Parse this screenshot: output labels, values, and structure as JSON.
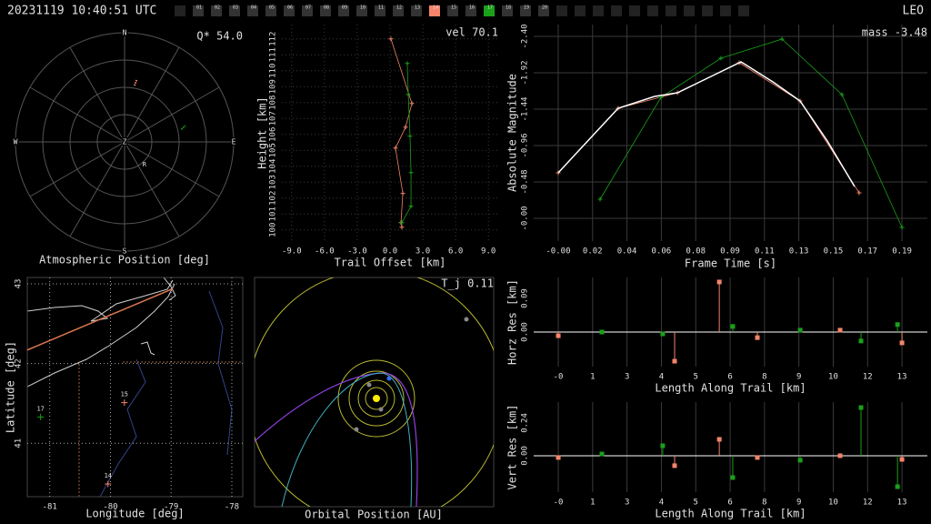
{
  "header": {
    "timestamp": "20231119 10:40:51 UTC",
    "mode": "LEO",
    "stations": [
      {
        "label": "01"
      },
      {
        "label": "02"
      },
      {
        "label": "03"
      },
      {
        "label": "04"
      },
      {
        "label": "05"
      },
      {
        "label": "06"
      },
      {
        "label": "07"
      },
      {
        "label": "08"
      },
      {
        "label": "09"
      },
      {
        "label": "10"
      },
      {
        "label": "11"
      },
      {
        "label": "12"
      },
      {
        "label": "13"
      },
      {
        "label": "14",
        "color": "#f4846a"
      },
      {
        "label": "15"
      },
      {
        "label": "16"
      },
      {
        "label": "17",
        "color": "#1aa01a"
      },
      {
        "label": "18"
      },
      {
        "label": "19"
      },
      {
        "label": "20"
      }
    ]
  },
  "chart_data": [
    {
      "type": "polar",
      "title": "Atmospheric Position [deg]",
      "annotation": "Q* 54.0",
      "direction_labels": [
        "N",
        "E",
        "S",
        "W"
      ],
      "center_label": "Z",
      "rlim": [
        0,
        90
      ],
      "rticks": [
        22.5,
        45,
        67.5,
        90
      ],
      "series": [
        {
          "color": "#f4846a",
          "azimuth": [
            11,
            10
          ],
          "values": [
            52,
            47
          ]
        },
        {
          "color": "#1aa01a",
          "azimuth": [
            77.5,
            75
          ],
          "values": [
            48,
            52
          ]
        }
      ],
      "radiant": {
        "label": "R",
        "azimuth": 139,
        "zenith": 25
      }
    },
    {
      "type": "line",
      "annotation": "vel 70.1",
      "xlabel": "Trail Offset [km]",
      "ylabel": "Height [km]",
      "xlim": [
        -9.9,
        9.9
      ],
      "xticks": [
        {
          "value": -9,
          "label": "-9.0"
        },
        {
          "value": -6,
          "label": "-6.0"
        },
        {
          "value": -3,
          "label": "-3.0"
        },
        {
          "value": 0,
          "label": "0.0"
        },
        {
          "value": 3,
          "label": "3.0"
        },
        {
          "value": 6,
          "label": "6.0"
        },
        {
          "value": 9,
          "label": "9.0"
        }
      ],
      "ylim": [
        99.3,
        112.9
      ],
      "yticks": [
        100,
        101,
        102,
        103,
        104,
        105,
        106,
        107,
        108,
        109,
        110,
        111,
        112
      ],
      "grid": "xy",
      "grid_style": "dotted",
      "series": [
        {
          "color": "#f4846a",
          "marker": "+",
          "x": [
            0.08,
            2.0,
            1.42,
            0.5,
            1.17,
            1.0,
            1.08
          ],
          "values": [
            112.0,
            107.94,
            106.46,
            105.14,
            102.29,
            100.46,
            100.17
          ]
        },
        {
          "color": "#1aa01a",
          "marker": "+",
          "x": [
            1.58,
            1.67,
            1.83,
            1.92,
            1.92,
            1.08
          ],
          "values": [
            110.46,
            108.51,
            105.89,
            103.6,
            101.49,
            100.46
          ]
        }
      ]
    },
    {
      "type": "line",
      "annotation": "mass -3.48",
      "xlabel": "Frame Time [s]",
      "ylabel": "Absolute Magnitude",
      "xlim": [
        -0.0134,
        0.2019
      ],
      "xticks": [
        {
          "value": 0,
          "label": "-0.00"
        },
        {
          "value": 0.0188,
          "label": "0.02"
        },
        {
          "value": 0.0376,
          "label": "0.04"
        },
        {
          "value": 0.0564,
          "label": "0.06"
        },
        {
          "value": 0.0752,
          "label": "0.08"
        },
        {
          "value": 0.094,
          "label": "0.09"
        },
        {
          "value": 0.1128,
          "label": "0.11"
        },
        {
          "value": 0.1316,
          "label": "0.13"
        },
        {
          "value": 0.1504,
          "label": "0.15"
        },
        {
          "value": 0.1692,
          "label": "0.17"
        },
        {
          "value": 0.188,
          "label": "0.19"
        }
      ],
      "ylim": [
        0.3,
        -2.556
      ],
      "yticks": [
        {
          "value": -2.4,
          "label": "-2.40"
        },
        {
          "value": -1.92,
          "label": "-1.92"
        },
        {
          "value": -1.44,
          "label": "-1.44"
        },
        {
          "value": -0.96,
          "label": "-0.96"
        },
        {
          "value": -0.48,
          "label": "-0.48"
        },
        {
          "value": 0,
          "label": "-0.00"
        }
      ],
      "grid": "xy",
      "grid_style": "solid",
      "series": [
        {
          "color": "#f4846a",
          "marker": "+",
          "x": [
            0,
            0.0328,
            0.0652,
            0.099,
            0.1323,
            0.1646
          ],
          "values": [
            -0.6,
            -1.452,
            -1.656,
            -2.052,
            -1.548,
            -0.336
          ]
        },
        {
          "color": "#1aa01a",
          "marker": "+",
          "x": [
            0.0229,
            0.0562,
            0.089,
            0.1224,
            0.1552,
            0.188
          ],
          "values": [
            -0.252,
            -1.596,
            -2.112,
            -2.364,
            -1.632,
            0.12
          ]
        },
        {
          "color": "#ffffff",
          "x": [
            0,
            0.0129,
            0.0328,
            0.0527,
            0.0652,
            0.0826,
            0.1,
            0.1174,
            0.1323,
            0.1472,
            0.1621
          ],
          "values": [
            -0.6,
            -0.936,
            -1.452,
            -1.608,
            -1.656,
            -1.86,
            -2.064,
            -1.8,
            -1.548,
            -1.02,
            -0.42
          ]
        }
      ]
    },
    {
      "type": "map",
      "xlabel": "Longitude [deg]",
      "ylabel": "Latitude [deg]",
      "xlim": [
        -81.37,
        -77.82
      ],
      "xticks": [
        -81,
        -80,
        -79,
        -78
      ],
      "ylim": [
        40.33,
        43.08
      ],
      "yticks": [
        41,
        42,
        43
      ],
      "grid": "xy",
      "grid_style": "dotted",
      "series": [
        {
          "color": "#d9774f",
          "x": [
            -81.37,
            -78.97
          ],
          "values": [
            42.17,
            42.94
          ]
        }
      ],
      "points": {
        "labels": [
          "17",
          "15",
          "14"
        ],
        "colors": [
          "#1aa01a",
          "#f4846a",
          "#f4846a"
        ],
        "x": [
          -81.15,
          -79.77,
          -80.04
        ],
        "values": [
          41.33,
          41.51,
          40.49
        ]
      }
    },
    {
      "type": "orbit",
      "title": "Orbital Position [AU]",
      "annotation": "T_j 0.11"
    },
    {
      "type": "stem",
      "xlabel": "Length Along Trail [km]",
      "ylabel": "Horz Res [km]",
      "xlim": [
        -0.93,
        13.96
      ],
      "xticks": [
        {
          "value": 0,
          "label": "-0"
        },
        {
          "value": 1.3,
          "label": "1"
        },
        {
          "value": 2.6,
          "label": "3"
        },
        {
          "value": 3.9,
          "label": "4"
        },
        {
          "value": 5.2,
          "label": "5"
        },
        {
          "value": 6.5,
          "label": "6"
        },
        {
          "value": 7.8,
          "label": "8"
        },
        {
          "value": 9.1,
          "label": "9"
        },
        {
          "value": 10.4,
          "label": "10"
        },
        {
          "value": 11.7,
          "label": "12"
        },
        {
          "value": 13.0,
          "label": "13"
        }
      ],
      "ylim": [
        -0.0925,
        0.146
      ],
      "yticks": [
        {
          "value": 0,
          "label": "0.00"
        },
        {
          "value": 0.09,
          "label": "0.09"
        }
      ],
      "grid": "x",
      "grid_style": "solid",
      "series": [
        {
          "color": "#f4846a",
          "x": [
            0,
            4.4,
            6.09,
            7.53,
            10.66,
            13.0
          ],
          "values": [
            -0.01,
            -0.078,
            0.134,
            -0.015,
            0.005,
            -0.029
          ]
        },
        {
          "color": "#1aa01a",
          "x": [
            1.65,
            3.95,
            6.6,
            9.15,
            11.45,
            12.83
          ],
          "values": [
            0.0,
            -0.005,
            0.015,
            0.005,
            -0.024,
            0.02
          ]
        }
      ]
    },
    {
      "type": "stem",
      "xlabel": "Length Along Trail [km]",
      "ylabel": "Vert Res [km]",
      "xlim": [
        -0.93,
        13.96
      ],
      "xticks": [
        {
          "value": 0,
          "label": "-0"
        },
        {
          "value": 1.3,
          "label": "1"
        },
        {
          "value": 2.6,
          "label": "3"
        },
        {
          "value": 3.9,
          "label": "4"
        },
        {
          "value": 5.2,
          "label": "5"
        },
        {
          "value": 6.5,
          "label": "6"
        },
        {
          "value": 7.8,
          "label": "8"
        },
        {
          "value": 9.1,
          "label": "9"
        },
        {
          "value": 10.4,
          "label": "10"
        },
        {
          "value": 11.7,
          "label": "12"
        },
        {
          "value": 13.0,
          "label": "13"
        }
      ],
      "ylim": [
        -0.267,
        0.393
      ],
      "yticks": [
        {
          "value": 0,
          "label": "0.00"
        },
        {
          "value": 0.24,
          "label": "0.24"
        }
      ],
      "grid": "x",
      "grid_style": "solid",
      "series": [
        {
          "color": "#f4846a",
          "x": [
            0,
            4.4,
            6.09,
            7.53,
            10.66,
            13.0
          ],
          "values": [
            -0.013,
            -0.073,
            0.12,
            -0.013,
            0.0,
            -0.027
          ]
        },
        {
          "color": "#1aa01a",
          "x": [
            1.65,
            3.95,
            6.6,
            9.15,
            11.45,
            12.83
          ],
          "values": [
            0.013,
            0.073,
            -0.16,
            -0.033,
            0.353,
            -0.227
          ]
        }
      ]
    }
  ]
}
